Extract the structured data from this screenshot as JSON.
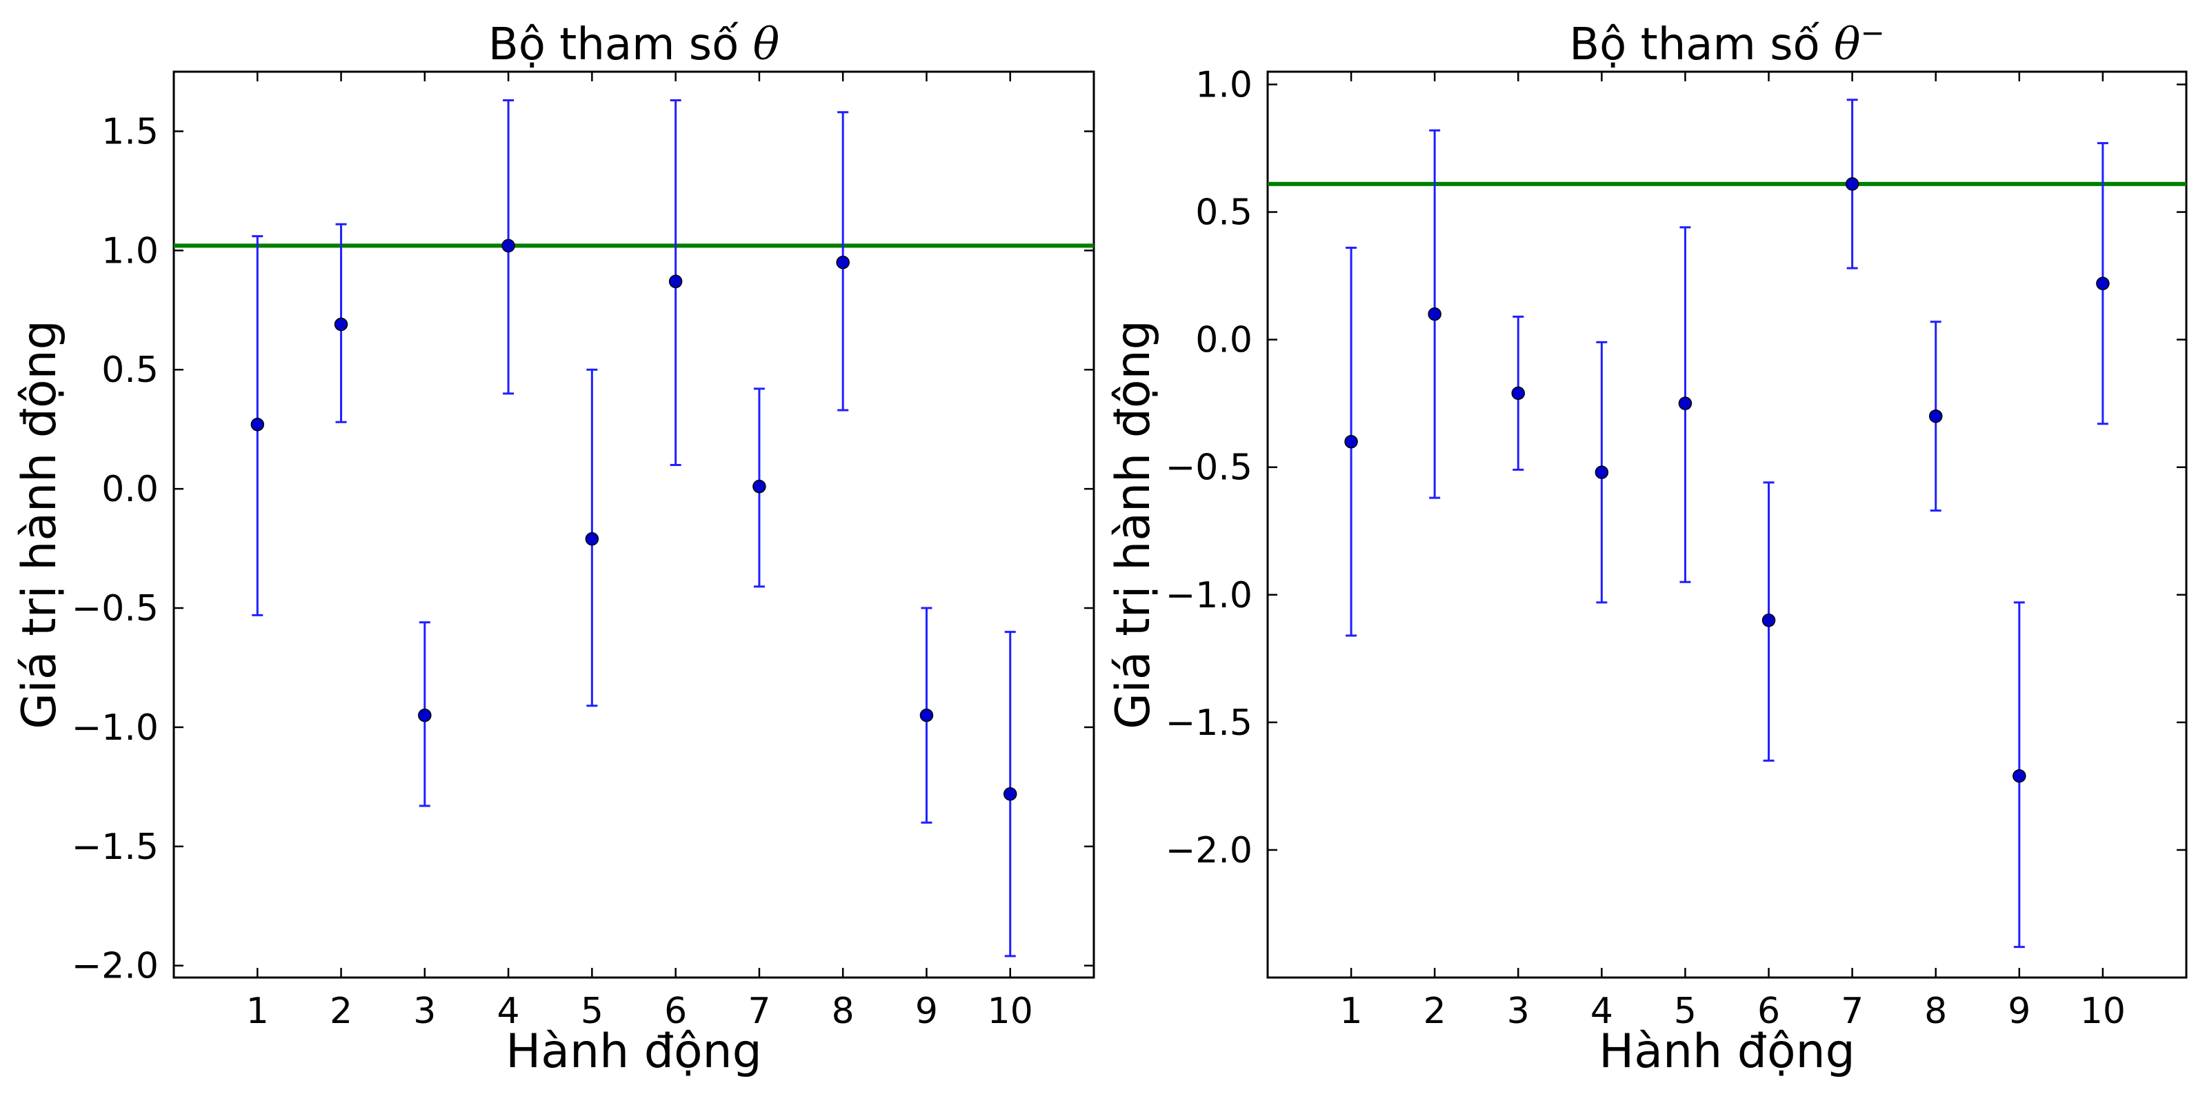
{
  "chart_data": [
    {
      "type": "scatter",
      "title": "Bộ tham số θ",
      "title_main": "Bộ tham số ",
      "title_symbol": "θ",
      "title_sup": "",
      "xlabel": "Hành động",
      "ylabel": "Giá trị hành động",
      "xlim": [
        0,
        11
      ],
      "ylim": [
        -2.05,
        1.75
      ],
      "xticks": [
        1,
        2,
        3,
        4,
        5,
        6,
        7,
        8,
        9,
        10
      ],
      "yticks": [
        -2.0,
        -1.5,
        -1.0,
        -0.5,
        0.0,
        0.5,
        1.0,
        1.5
      ],
      "ytick_labels": [
        "−2.0",
        "−1.5",
        "−1.0",
        "−0.5",
        "0.0",
        "0.5",
        "1.0",
        "1.5"
      ],
      "grid": false,
      "points": [
        {
          "x": 1,
          "y": 0.27,
          "ymin": -0.53,
          "ymax": 1.06
        },
        {
          "x": 2,
          "y": 0.69,
          "ymin": 0.28,
          "ymax": 1.11
        },
        {
          "x": 3,
          "y": -0.95,
          "ymin": -1.33,
          "ymax": -0.56
        },
        {
          "x": 4,
          "y": 1.02,
          "ymin": 0.4,
          "ymax": 1.63
        },
        {
          "x": 5,
          "y": -0.21,
          "ymin": -0.91,
          "ymax": 0.5
        },
        {
          "x": 6,
          "y": 0.87,
          "ymin": 0.1,
          "ymax": 1.63
        },
        {
          "x": 7,
          "y": 0.01,
          "ymin": -0.41,
          "ymax": 0.42
        },
        {
          "x": 8,
          "y": 0.95,
          "ymin": 0.33,
          "ymax": 1.58
        },
        {
          "x": 9,
          "y": -0.95,
          "ymin": -1.4,
          "ymax": -0.5
        },
        {
          "x": 10,
          "y": -1.28,
          "ymin": -1.96,
          "ymax": -0.6
        }
      ],
      "reference_line": 1.02,
      "point_color": "#0000cc",
      "error_color": "#1f1fff",
      "line_color": "#007f00"
    },
    {
      "type": "scatter",
      "title": "Bộ tham số θ⁻",
      "title_main": "Bộ tham số ",
      "title_symbol": "θ",
      "title_sup": "−",
      "xlabel": "Hành động",
      "ylabel": "Giá trị hành động",
      "xlim": [
        0,
        11
      ],
      "ylim": [
        -2.5,
        1.05
      ],
      "xticks": [
        1,
        2,
        3,
        4,
        5,
        6,
        7,
        8,
        9,
        10
      ],
      "yticks": [
        -2.0,
        -1.5,
        -1.0,
        -0.5,
        0.0,
        0.5,
        1.0
      ],
      "ytick_labels": [
        "−2.0",
        "−1.5",
        "−1.0",
        "−0.5",
        "0.0",
        "0.5",
        "1.0"
      ],
      "grid": false,
      "points": [
        {
          "x": 1,
          "y": -0.4,
          "ymin": -1.16,
          "ymax": 0.36
        },
        {
          "x": 2,
          "y": 0.1,
          "ymin": -0.62,
          "ymax": 0.82
        },
        {
          "x": 3,
          "y": -0.21,
          "ymin": -0.51,
          "ymax": 0.09
        },
        {
          "x": 4,
          "y": -0.52,
          "ymin": -1.03,
          "ymax": -0.01
        },
        {
          "x": 5,
          "y": -0.25,
          "ymin": -0.95,
          "ymax": 0.44
        },
        {
          "x": 6,
          "y": -1.1,
          "ymin": -1.65,
          "ymax": -0.56
        },
        {
          "x": 7,
          "y": 0.61,
          "ymin": 0.28,
          "ymax": 0.94
        },
        {
          "x": 8,
          "y": -0.3,
          "ymin": -0.67,
          "ymax": 0.07
        },
        {
          "x": 9,
          "y": -1.71,
          "ymin": -2.38,
          "ymax": -1.03
        },
        {
          "x": 10,
          "y": 0.22,
          "ymin": -0.33,
          "ymax": 0.77
        }
      ],
      "reference_line": 0.61,
      "point_color": "#0000cc",
      "error_color": "#1f1fff",
      "line_color": "#007f00"
    }
  ]
}
